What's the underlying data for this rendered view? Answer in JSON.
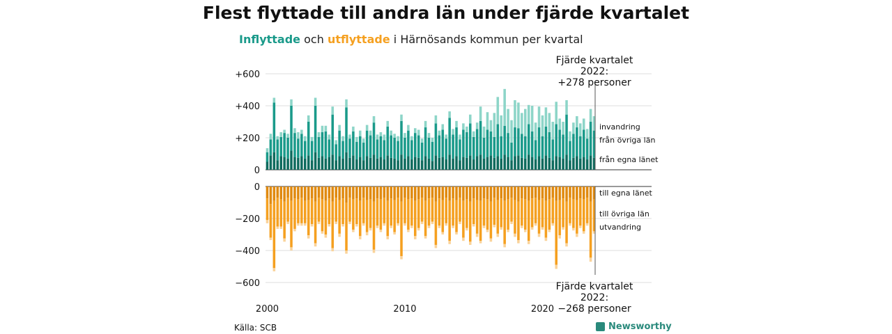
{
  "title": "Flest flyttade till andra län under fjärde kvartalet",
  "subtitle": {
    "in_word": "Inflyttade",
    "and_word": "och",
    "out_word": "utflyttade",
    "rest": "i Härnösands kommun per kvartal"
  },
  "annotations": {
    "top_line1": "Fjärde kvartalet 2022:",
    "top_line2": "+278 personer",
    "bottom_line1": "Fjärde kvartalet 2022:",
    "bottom_line2": "−268 personer"
  },
  "source": "Källa: SCB",
  "brand": "Newsworthy",
  "colors": {
    "in_local": "#0f6b5e",
    "in_other": "#1a9a8a",
    "in_abroad": "#8dd5c8",
    "out_local": "#e08a10",
    "out_other": "#f5a020",
    "out_abroad": "#fad39a",
    "grid": "#dddddd",
    "axis": "#333333"
  },
  "chart_data": {
    "type": "bar",
    "stacked": true,
    "x_start_year": 2000,
    "quarters_per_year": 4,
    "x_tick_labels": [
      "2000",
      "2010",
      "2020"
    ],
    "top_panel": {
      "y_tick_labels": [
        "0",
        "+200",
        "+400",
        "+600"
      ],
      "ylim": [
        0,
        600
      ],
      "series": [
        {
          "name": "från egna länet",
          "values": [
            50,
            90,
            110,
            60,
            85,
            80,
            70,
            120,
            80,
            75,
            85,
            70,
            90,
            60,
            110,
            75,
            85,
            70,
            80,
            95,
            60,
            85,
            70,
            110,
            75,
            90,
            65,
            80,
            60,
            85,
            75,
            95,
            70,
            80,
            65,
            90,
            75,
            70,
            60,
            95,
            70,
            85,
            65,
            80,
            75,
            60,
            85,
            70,
            55,
            90,
            75,
            80,
            65,
            95,
            70,
            85,
            60,
            80,
            75,
            90,
            65,
            85,
            95,
            70,
            80,
            90,
            75,
            85,
            70,
            95,
            80,
            60,
            85,
            90,
            75,
            70,
            95,
            80,
            65,
            85,
            70,
            90,
            75,
            60,
            85,
            80,
            70,
            95,
            60,
            75,
            85,
            70,
            80,
            65,
            90,
            75
          ]
        },
        {
          "name": "från övriga län",
          "values": [
            60,
            100,
            310,
            130,
            120,
            150,
            130,
            280,
            150,
            120,
            140,
            110,
            210,
            120,
            290,
            130,
            150,
            170,
            110,
            250,
            100,
            160,
            110,
            280,
            120,
            150,
            110,
            130,
            110,
            160,
            140,
            200,
            120,
            130,
            120,
            180,
            140,
            130,
            120,
            210,
            130,
            160,
            120,
            150,
            140,
            110,
            180,
            130,
            120,
            200,
            140,
            170,
            130,
            230,
            150,
            180,
            130,
            170,
            160,
            200,
            140,
            170,
            210,
            130,
            170,
            150,
            130,
            200,
            140,
            180,
            150,
            110,
            180,
            170,
            150,
            140,
            190,
            160,
            120,
            180,
            140,
            180,
            160,
            130,
            200,
            170,
            150,
            250,
            120,
            150,
            180,
            140,
            170,
            130,
            210,
            170
          ]
        },
        {
          "name": "invandring",
          "values": [
            25,
            35,
            30,
            20,
            30,
            20,
            25,
            40,
            30,
            40,
            25,
            30,
            40,
            25,
            50,
            30,
            40,
            35,
            30,
            50,
            25,
            35,
            30,
            50,
            25,
            30,
            30,
            35,
            25,
            35,
            30,
            40,
            30,
            25,
            35,
            35,
            30,
            25,
            30,
            40,
            30,
            35,
            25,
            30,
            35,
            25,
            40,
            30,
            25,
            50,
            30,
            35,
            25,
            40,
            35,
            40,
            30,
            40,
            35,
            55,
            35,
            40,
            90,
            70,
            110,
            70,
            150,
            170,
            130,
            230,
            150,
            140,
            170,
            160,
            130,
            170,
            120,
            160,
            110,
            130,
            130,
            120,
            120,
            110,
            140,
            70,
            80,
            90,
            60,
            70,
            70,
            80,
            70,
            60,
            80,
            90
          ]
        }
      ]
    },
    "bottom_panel": {
      "y_tick_labels": [
        "0",
        "−200",
        "−400",
        "−600"
      ],
      "ylim": [
        -600,
        0
      ],
      "series": [
        {
          "name": "till egna länet",
          "values": [
            -75,
            -110,
            -90,
            -70,
            -80,
            -95,
            -70,
            -90,
            -75,
            -80,
            -70,
            -90,
            -85,
            -75,
            -95,
            -70,
            -80,
            -90,
            -75,
            -95,
            -70,
            -85,
            -75,
            -100,
            -70,
            -80,
            -75,
            -90,
            -70,
            -85,
            -80,
            -95,
            -75,
            -80,
            -70,
            -90,
            -75,
            -85,
            -70,
            -95,
            -70,
            -80,
            -75,
            -90,
            -80,
            -70,
            -90,
            -75,
            -70,
            -95,
            -75,
            -85,
            -70,
            -90,
            -75,
            -85,
            -70,
            -90,
            -80,
            -95,
            -75,
            -85,
            -90,
            -75,
            -80,
            -95,
            -70,
            -85,
            -75,
            -90,
            -80,
            -70,
            -85,
            -95,
            -75,
            -80,
            -90,
            -75,
            -70,
            -85,
            -75,
            -90,
            -80,
            -70,
            -90,
            -85,
            -75,
            -95,
            -70,
            -80,
            -85,
            -75,
            -80,
            -70,
            -95,
            -80
          ]
        },
        {
          "name": "till övriga län",
          "values": [
            -135,
            -210,
            -420,
            -180,
            -170,
            -230,
            -150,
            -290,
            -190,
            -150,
            -160,
            -140,
            -220,
            -160,
            -260,
            -150,
            -200,
            -210,
            -160,
            -290,
            -150,
            -210,
            -160,
            -300,
            -150,
            -190,
            -160,
            -220,
            -160,
            -200,
            -180,
            -300,
            -170,
            -190,
            -160,
            -220,
            -170,
            -200,
            -160,
            -340,
            -160,
            -190,
            -170,
            -220,
            -180,
            -150,
            -220,
            -170,
            -150,
            -270,
            -170,
            -200,
            -160,
            -250,
            -170,
            -200,
            -150,
            -230,
            -180,
            -250,
            -160,
            -210,
            -250,
            -170,
            -190,
            -230,
            -170,
            -210,
            -180,
            -270,
            -190,
            -150,
            -210,
            -240,
            -170,
            -190,
            -250,
            -180,
            -160,
            -210,
            -180,
            -230,
            -190,
            -160,
            -400,
            -220,
            -180,
            -260,
            -160,
            -180,
            -210,
            -170,
            -200,
            -160,
            -350,
            -200
          ]
        },
        {
          "name": "utvandring",
          "values": [
            -20,
            -15,
            -20,
            -15,
            -15,
            -20,
            -15,
            -20,
            -15,
            -15,
            -15,
            -15,
            -20,
            -15,
            -20,
            -15,
            -15,
            -20,
            -15,
            -20,
            -15,
            -20,
            -15,
            -20,
            -15,
            -15,
            -15,
            -20,
            -15,
            -20,
            -15,
            -20,
            -15,
            -15,
            -15,
            -20,
            -15,
            -15,
            -15,
            -20,
            -15,
            -15,
            -15,
            -20,
            -15,
            -15,
            -15,
            -15,
            -15,
            -20,
            -15,
            -15,
            -15,
            -20,
            -15,
            -15,
            -15,
            -20,
            -15,
            -20,
            -15,
            -20,
            -15,
            -15,
            -15,
            -20,
            -15,
            -20,
            -15,
            -20,
            -15,
            -15,
            -20,
            -20,
            -15,
            -15,
            -20,
            -15,
            -15,
            -20,
            -15,
            -20,
            -15,
            -15,
            -25,
            -20,
            -15,
            -20,
            -15,
            -15,
            -20,
            -15,
            -15,
            -15,
            -25,
            -15
          ]
        }
      ]
    },
    "legend_placement": "right",
    "grid": true
  }
}
